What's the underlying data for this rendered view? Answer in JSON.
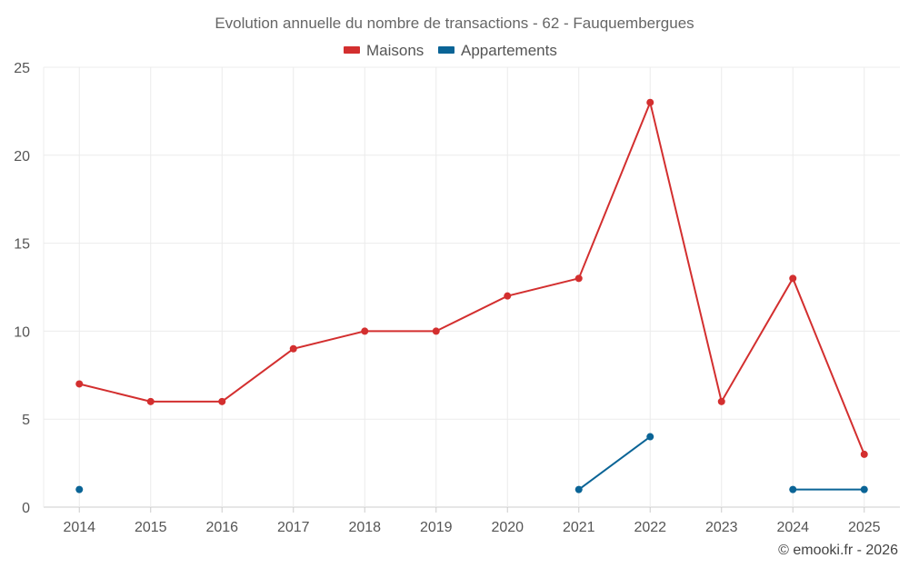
{
  "chart_data": {
    "type": "line",
    "title": "Evolution annuelle du nombre de transactions - 62 - Fauquembergues",
    "categories": [
      "2014",
      "2015",
      "2016",
      "2017",
      "2018",
      "2019",
      "2020",
      "2021",
      "2022",
      "2023",
      "2024",
      "2025"
    ],
    "ylim": [
      0,
      25
    ],
    "yticks": [
      0,
      5,
      10,
      15,
      20,
      25
    ],
    "xlabel": "",
    "ylabel": "",
    "grid": true,
    "legend_position": "top-center",
    "series": [
      {
        "name": "Maisons",
        "color": "#d32f2f",
        "values": [
          7,
          6,
          6,
          9,
          10,
          10,
          12,
          13,
          23,
          6,
          13,
          3
        ]
      },
      {
        "name": "Appartements",
        "color": "#0a6496",
        "values": [
          1,
          null,
          null,
          null,
          null,
          null,
          null,
          1,
          4,
          null,
          1,
          1
        ]
      }
    ]
  },
  "credit": "© emooki.fr - 2026"
}
